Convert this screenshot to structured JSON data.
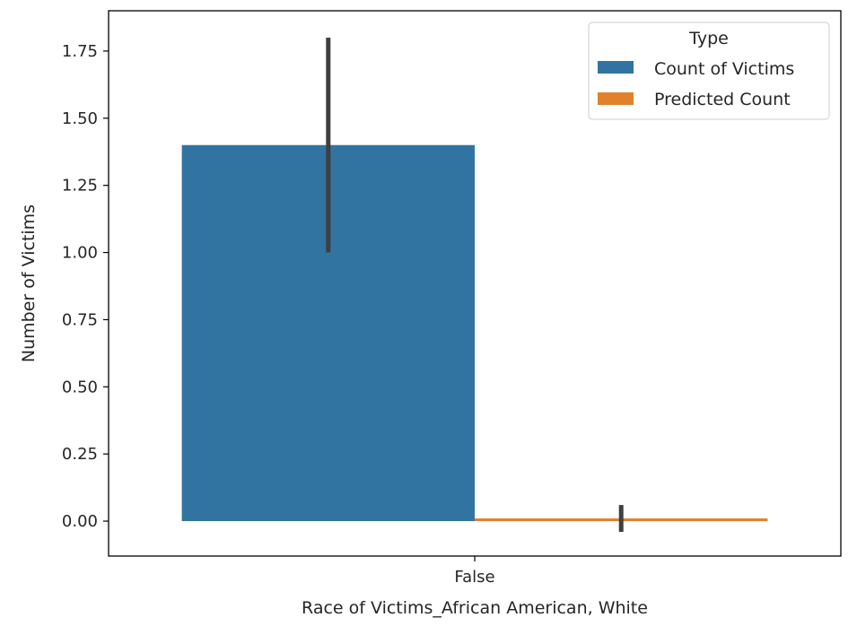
{
  "chart_data": {
    "type": "bar",
    "categories": [
      "False"
    ],
    "series": [
      {
        "name": "Count of Victims",
        "color": "#3274a1",
        "values": [
          1.4
        ],
        "error": [
          [
            1.0,
            1.8
          ]
        ]
      },
      {
        "name": "Predicted Count",
        "color": "#e1812c",
        "values": [
          0.01
        ],
        "error": [
          [
            -0.04,
            0.06
          ]
        ]
      }
    ],
    "xlabel": "Race of Victims_African American, White",
    "ylabel": "Number of Victims",
    "ylim": [
      -0.13,
      1.9
    ],
    "yticks": [
      "0.00",
      "0.25",
      "0.50",
      "0.75",
      "1.00",
      "1.25",
      "1.50",
      "1.75"
    ],
    "legend": {
      "title": "Type",
      "position": "top-right"
    },
    "grid": false,
    "error_bar_color": "#3f3f3f"
  }
}
